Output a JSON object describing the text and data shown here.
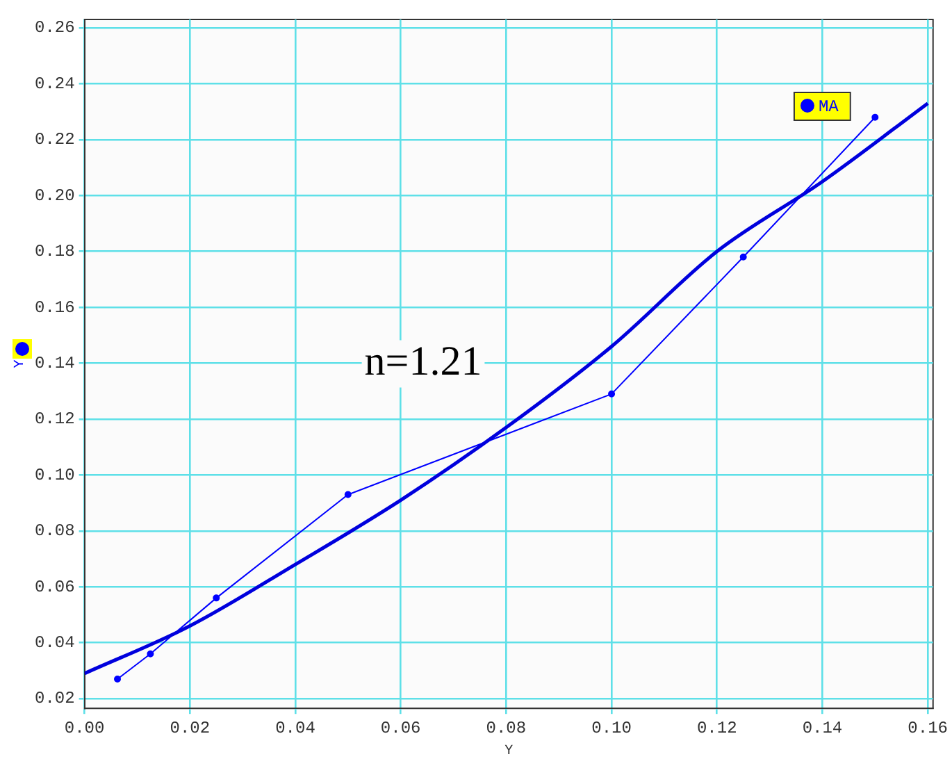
{
  "chart_data": {
    "type": "line",
    "xlabel": "Y",
    "ylabel": "Y",
    "annotations": [
      "n=1.21"
    ],
    "x": [
      0.00625,
      0.0125,
      0.025,
      0.05,
      0.1,
      0.125,
      0.15
    ],
    "series": [
      {
        "name": "MA",
        "color": "#0000ff",
        "marker": "circle",
        "values": [
          0.027,
          0.036,
          0.056,
          0.093,
          0.129,
          0.178,
          0.228
        ]
      },
      {
        "type": "line",
        "marker": "none",
        "color": "#0000dd",
        "x": [
          0,
          0.02,
          0.04,
          0.06,
          0.08,
          0.1,
          0.12,
          0.14,
          0.16
        ],
        "values": [
          0.029,
          0.046,
          0.068,
          0.091,
          0.117,
          0.146,
          0.18,
          0.205,
          0.233
        ]
      }
    ],
    "xlim": [
      0,
      0.161
    ],
    "xticks": [
      {
        "value": 0,
        "label": "0.00"
      },
      {
        "value": 0.02,
        "label": "0.02"
      },
      {
        "value": 0.04,
        "label": "0.04"
      },
      {
        "value": 0.06,
        "label": "0.06"
      },
      {
        "value": 0.08,
        "label": "0.08"
      },
      {
        "value": 0.1,
        "label": "0.10"
      },
      {
        "value": 0.12,
        "label": "0.12"
      },
      {
        "value": 0.14,
        "label": "0.14"
      },
      {
        "value": 0.16,
        "label": "0.16"
      }
    ],
    "ylim": [
      0.0165,
      0.263
    ],
    "yticks": [
      {
        "value": 0.02,
        "label": "0.02"
      },
      {
        "value": 0.04,
        "label": "0.04"
      },
      {
        "value": 0.06,
        "label": "0.06"
      },
      {
        "value": 0.08,
        "label": "0.08"
      },
      {
        "value": 0.1,
        "label": "0.10"
      },
      {
        "value": 0.12,
        "label": "0.12"
      },
      {
        "value": 0.14,
        "label": "0.14"
      },
      {
        "value": 0.16,
        "label": "0.16"
      },
      {
        "value": 0.18,
        "label": "0.18"
      },
      {
        "value": 0.2,
        "label": "0.20"
      },
      {
        "value": 0.22,
        "label": "0.22"
      },
      {
        "value": 0.24,
        "label": "0.24"
      },
      {
        "value": 0.26,
        "label": "0.26"
      }
    ],
    "grid": true,
    "legend": "top right",
    "line_style": "solid"
  }
}
